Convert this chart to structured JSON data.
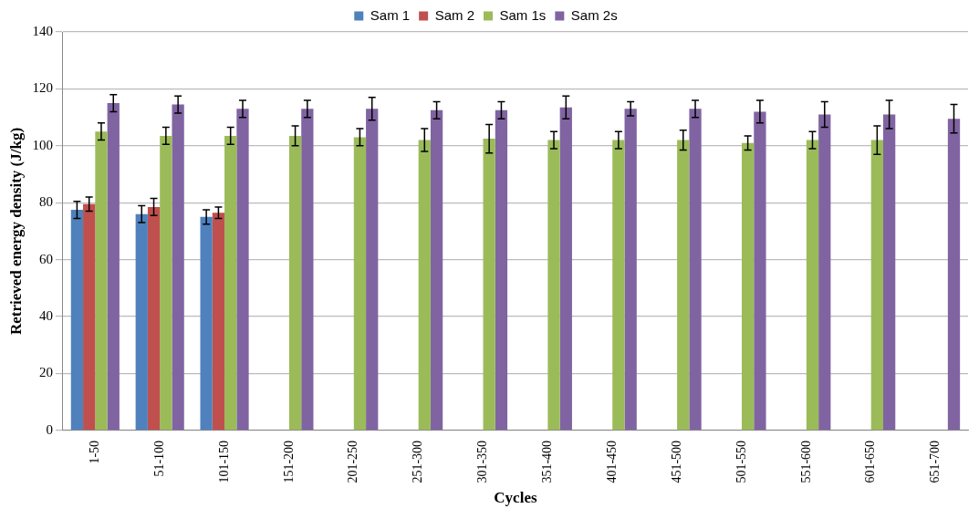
{
  "chart_data": {
    "type": "bar",
    "xlabel": "Cycles",
    "ylabel": "Retrieved energy density (J/kg)",
    "categories": [
      "1-50",
      "51-100",
      "101-150",
      "151-200",
      "201-250",
      "251-300",
      "301-350",
      "351-400",
      "401-450",
      "451-500",
      "501-550",
      "551-600",
      "601-650",
      "651-700"
    ],
    "series": [
      {
        "name": "Sam 1",
        "color": "#4f81bd",
        "values": [
          77.5,
          76,
          75,
          null,
          null,
          null,
          null,
          null,
          null,
          null,
          null,
          null,
          null,
          null
        ],
        "errors": [
          3,
          3,
          2.5,
          null,
          null,
          null,
          null,
          null,
          null,
          null,
          null,
          null,
          null,
          null
        ]
      },
      {
        "name": "Sam 2",
        "color": "#c0504d",
        "values": [
          79.5,
          78.5,
          76.5,
          null,
          null,
          null,
          null,
          null,
          null,
          null,
          null,
          null,
          null,
          null
        ],
        "errors": [
          2.5,
          3,
          2,
          null,
          null,
          null,
          null,
          null,
          null,
          null,
          null,
          null,
          null,
          null
        ]
      },
      {
        "name": "Sam 1s",
        "color": "#9bbb59",
        "values": [
          105,
          103.5,
          103.5,
          103.5,
          103,
          102,
          102.5,
          102,
          102,
          102,
          101,
          102,
          102,
          null
        ],
        "errors": [
          3,
          3,
          3,
          3.5,
          3,
          4,
          5,
          3,
          3,
          3.5,
          2.5,
          3,
          5,
          null
        ]
      },
      {
        "name": "Sam 2s",
        "color": "#8064a2",
        "values": [
          115,
          114.5,
          113,
          113,
          113,
          112.5,
          112.5,
          113.5,
          113,
          113,
          112,
          111,
          111,
          109.5
        ],
        "errors": [
          3,
          3,
          3,
          3,
          4,
          3,
          3,
          4,
          2.5,
          3,
          4,
          4.5,
          5,
          5
        ]
      }
    ],
    "ylim": [
      0,
      140
    ],
    "yticks": [
      0,
      20,
      40,
      60,
      80,
      100,
      120,
      140
    ],
    "grid": "y",
    "legend": "top"
  }
}
